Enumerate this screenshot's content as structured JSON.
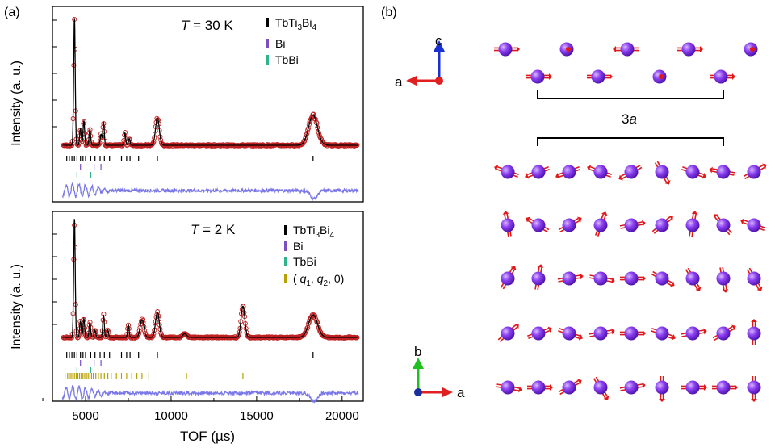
{
  "panel_a_label": "(a)",
  "panel_b_label": "(b)",
  "chart_data": [
    {
      "type": "line",
      "panel": "top",
      "annotation": "T = 30 K",
      "temperature_symbol": "T",
      "temperature_text": "=  30 K",
      "ylabel": "Intensity (a. u.)",
      "xlabel": "",
      "xlim": [
        3300,
        21000
      ],
      "legend": [
        {
          "name": "TbTi3Bi4",
          "label_parts": [
            "TbTi",
            "3",
            "Bi",
            "4"
          ],
          "color": "#000000"
        },
        {
          "name": "Bi",
          "label_parts": [
            "Bi"
          ],
          "color": "#7a4fc0"
        },
        {
          "name": "TbBi",
          "label_parts": [
            "TbBi"
          ],
          "color": "#2fb38a"
        }
      ],
      "peaks": [
        {
          "x": 4350,
          "h": 0.93
        },
        {
          "x": 4700,
          "h": 0.12
        },
        {
          "x": 4900,
          "h": 0.18
        },
        {
          "x": 5250,
          "h": 0.12
        },
        {
          "x": 5900,
          "h": 0.08
        },
        {
          "x": 6050,
          "h": 0.17
        },
        {
          "x": 7300,
          "h": 0.09
        },
        {
          "x": 7550,
          "h": 0.05
        },
        {
          "x": 9200,
          "h": 0.2
        },
        {
          "x": 18300,
          "h": 0.22
        }
      ],
      "reflection_ticks": {
        "TbTi3Bi4": [
          3900,
          4050,
          4200,
          4350,
          4500,
          4700,
          4850,
          5000,
          5300,
          5550,
          5850,
          6100,
          6400,
          7100,
          7400,
          7600,
          8100,
          9200,
          18300
        ],
        "Bi": [
          4700,
          5500,
          5900
        ],
        "TbBi": [
          4500,
          5300
        ]
      },
      "difference_series_color": "#7a78e8",
      "data_series_color": "#c02020",
      "fit_series_color": "#000000"
    },
    {
      "type": "line",
      "panel": "bottom",
      "annotation": "T = 2 K",
      "temperature_symbol": "T",
      "temperature_text": "=  2 K",
      "ylabel": "Intensity (a. u.)",
      "xlabel": "TOF (µs)",
      "xlim": [
        3300,
        21000
      ],
      "xticks": [
        5000,
        10000,
        15000,
        20000
      ],
      "xtick_labels": [
        "5000",
        "10000",
        "15000",
        "20000"
      ],
      "legend": [
        {
          "name": "TbTi3Bi4",
          "label_parts": [
            "TbTi",
            "3",
            "Bi",
            "4"
          ],
          "color": "#000000"
        },
        {
          "name": "Bi",
          "label_parts": [
            "Bi"
          ],
          "color": "#7a4fc0"
        },
        {
          "name": "TbBi",
          "label_parts": [
            "TbBi"
          ],
          "color": "#2fb38a"
        },
        {
          "name": "(q1, q2, 0)",
          "label_parts": [
            "( ",
            "q",
            "1",
            ", ",
            "q",
            "2",
            ", 0)"
          ],
          "color": "#b8a000"
        }
      ],
      "peaks": [
        {
          "x": 4350,
          "h": 0.95
        },
        {
          "x": 4700,
          "h": 0.13
        },
        {
          "x": 4900,
          "h": 0.15
        },
        {
          "x": 5250,
          "h": 0.12
        },
        {
          "x": 5550,
          "h": 0.06
        },
        {
          "x": 6050,
          "h": 0.18
        },
        {
          "x": 6300,
          "h": 0.06
        },
        {
          "x": 7500,
          "h": 0.1
        },
        {
          "x": 8300,
          "h": 0.14
        },
        {
          "x": 9200,
          "h": 0.2
        },
        {
          "x": 10800,
          "h": 0.03
        },
        {
          "x": 14200,
          "h": 0.25
        },
        {
          "x": 18300,
          "h": 0.18
        }
      ],
      "reflection_ticks": {
        "TbTi3Bi4": [
          3900,
          4050,
          4200,
          4350,
          4500,
          4700,
          4850,
          5000,
          5300,
          5550,
          5850,
          6100,
          6400,
          7100,
          7400,
          7600,
          8100,
          9200,
          18300
        ],
        "Bi": [
          4700,
          5500,
          5900
        ],
        "TbBi": [
          4500,
          5300
        ],
        "(q1, q2, 0)": [
          3800,
          3950,
          4050,
          4150,
          4250,
          4350,
          4450,
          4550,
          4650,
          4750,
          4850,
          4950,
          5050,
          5150,
          5250,
          5350,
          5450,
          5600,
          5750,
          5900,
          6100,
          6300,
          6500,
          6800,
          7100,
          7400,
          7700,
          8000,
          8300,
          8700,
          10900,
          14200
        ]
      },
      "difference_series_color": "#7a78e8",
      "data_series_color": "#c02020",
      "fit_series_color": "#000000"
    }
  ],
  "panel_b": {
    "axes_top": {
      "vertical_label": "c",
      "horizontal_label": "a",
      "vertical_color": "#1a2fd0",
      "horizontal_color": "#e02020",
      "origin_color": "#e02020"
    },
    "axes_bottom": {
      "vertical_label": "b",
      "horizontal_label": "a",
      "vertical_color": "#20c020",
      "horizontal_color": "#e02020",
      "origin_color": "#1a2fa0"
    },
    "period_label_1_italic": "a",
    "period_label_2_prefix": "3",
    "period_label_2_italic": "a",
    "atom_color": "#8a3ff0",
    "arrow_color": "#e01818",
    "side_view": {
      "row1_angles_deg": [
        0,
        null,
        180,
        0,
        null
      ],
      "row2_angles_deg": [
        0,
        0,
        null,
        0
      ]
    },
    "top_view_angles_deg": [
      [
        160,
        200,
        200,
        160,
        210,
        300,
        340,
        170,
        30
      ],
      [
        100,
        150,
        30,
        70,
        10,
        40,
        80,
        130,
        160
      ],
      [
        60,
        80,
        10,
        350,
        0,
        330,
        300,
        280,
        300
      ],
      [
        40,
        20,
        340,
        10,
        0,
        340,
        10,
        30,
        90
      ],
      [
        350,
        0,
        30,
        300,
        10,
        270,
        0,
        0,
        270
      ]
    ]
  }
}
